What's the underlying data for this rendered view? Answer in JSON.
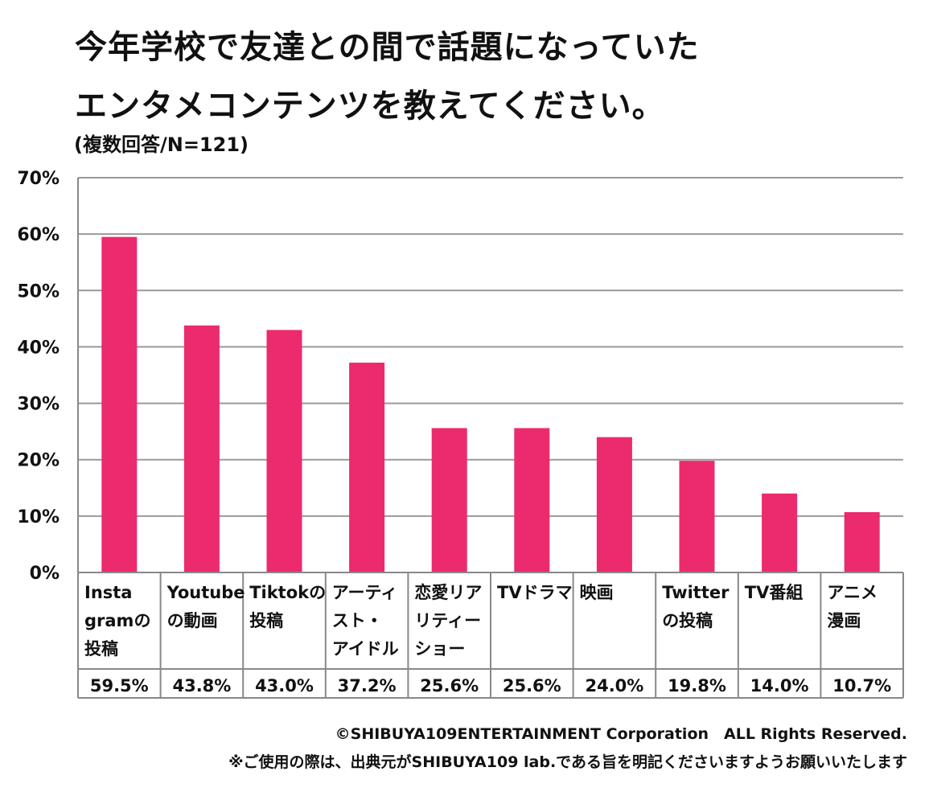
{
  "title_line1": "今年学校で友達との間で話題になっていた",
  "title_line2": "エンタメコンテンツを教えてください。",
  "subtitle": "(複数回答/N=121)",
  "copyright": "©SHIBUYA109ENTERTAINMENT Corporation　ALL Rights Reserved.",
  "note": "※ご使用の際は、出典元がSHIBUYA109 lab.である旨を明記くださいますようお願いいたします",
  "colors": {
    "bar": "#EC2A6E",
    "grid": "#999999",
    "axis": "#888888"
  },
  "chart_data": {
    "type": "bar",
    "title": "今年学校で友達との間で話題になっていたエンタメコンテンツを教えてください。",
    "ylim": [
      0,
      70
    ],
    "yticks": [
      0,
      10,
      20,
      30,
      40,
      50,
      60,
      70
    ],
    "ytick_labels": [
      "0%",
      "10%",
      "20%",
      "30%",
      "40%",
      "50%",
      "60%",
      "70%"
    ],
    "grid": true,
    "categories": [
      "Instagramの投稿",
      "Youtubeの動画",
      "Tiktokの投稿",
      "アーティスト・アイドル",
      "恋愛リアリティーショー",
      "TVドラマ",
      "映画",
      "Twitterの投稿",
      "TV番組",
      "アニメ漫画"
    ],
    "category_lines": [
      [
        "Insta",
        "gramの",
        "投稿"
      ],
      [
        "Youtube",
        "の動画"
      ],
      [
        "Tiktokの",
        "投稿"
      ],
      [
        "アーティ",
        "スト・",
        "アイドル"
      ],
      [
        "恋愛リア",
        "リティー",
        "ショー"
      ],
      [
        "TVドラマ"
      ],
      [
        "映画"
      ],
      [
        "Twitter",
        "の投稿"
      ],
      [
        "TV番組"
      ],
      [
        "アニメ",
        "漫画"
      ]
    ],
    "values": [
      59.5,
      43.8,
      43.0,
      37.2,
      25.6,
      25.6,
      24.0,
      19.8,
      14.0,
      10.7
    ],
    "value_labels": [
      "59.5%",
      "43.8%",
      "43.0%",
      "37.2%",
      "25.6%",
      "25.6%",
      "24.0%",
      "19.8%",
      "14.0%",
      "10.7%"
    ]
  }
}
